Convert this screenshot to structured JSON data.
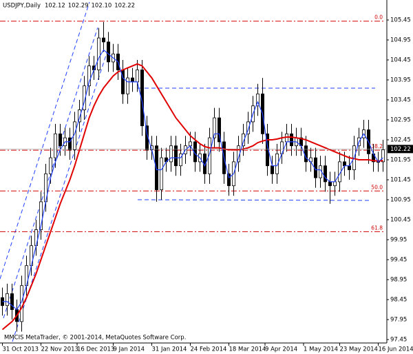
{
  "chart_data": {
    "type": "candlestick",
    "title": "USDJPY,Daily",
    "quote": [
      102.12,
      102.29,
      {
        "value": 102.1,
        "label": "102.10"
      },
      102.22
    ],
    "footer": "MMCIS MetaTrader, © 2001-2014, MetaQuotes Software Corp.",
    "xlim": [
      -0.5,
      79.5
    ],
    "xticks": [
      {
        "value": 0,
        "label": "31 Oct 2013"
      },
      {
        "value": 8,
        "label": "22 Nov 2013"
      },
      {
        "value": 15.5,
        "label": "16 Dec 2013"
      },
      {
        "value": 23,
        "label": "9 Jan 2014"
      },
      {
        "value": 31,
        "label": "31 Jan 2014"
      },
      {
        "value": 39,
        "label": "24 Feb 2014"
      },
      {
        "value": 47,
        "label": "18 Mar 2014"
      },
      {
        "value": 54.5,
        "label": "9 Apr 2014"
      },
      {
        "value": 62.5,
        "label": "1 May 2014"
      },
      {
        "value": 70,
        "label": "23 May 2014"
      },
      {
        "value": 78,
        "label": "16 Jun 2014"
      }
    ],
    "ylim": [
      97.33,
      105.95
    ],
    "yticks": [
      105.45,
      104.95,
      104.45,
      103.95,
      103.45,
      102.95,
      102.45,
      101.95,
      101.45,
      100.95,
      100.45,
      99.95,
      99.45,
      98.95,
      98.45,
      97.95,
      97.45
    ],
    "candles": {
      "open": [
        98.5,
        98.3,
        98.6,
        98.2,
        97.9,
        98.8,
        99.3,
        99.8,
        100.2,
        100.9,
        101.6,
        102.0,
        102.6,
        102.3,
        102.5,
        102.2,
        102.9,
        103.2,
        103.8,
        104.3,
        104.2,
        105.0,
        104.9,
        104.4,
        104.6,
        104.2,
        103.6,
        104.0,
        103.9,
        104.2,
        102.8,
        102.2,
        102.3,
        101.2,
        102.0,
        101.9,
        102.3,
        101.8,
        102.1,
        102.3,
        102.4,
        101.9,
        102.1,
        101.6,
        102.5,
        103.0,
        102.4,
        101.6,
        101.3,
        101.9,
        102.3,
        102.6,
        102.9,
        103.3,
        103.6,
        102.6,
        101.8,
        101.6,
        102.1,
        102.4,
        102.6,
        102.3,
        102.5,
        102.3,
        101.9,
        102.0,
        101.5,
        101.8,
        101.4,
        101.3,
        101.4,
        101.9,
        101.8,
        101.7,
        102.3,
        102.5,
        102.7,
        102.1,
        101.9,
        101.9
      ],
      "high": [
        98.75,
        98.85,
        98.85,
        98.45,
        99.05,
        99.55,
        100.05,
        100.45,
        101.15,
        101.85,
        102.25,
        102.85,
        102.85,
        102.75,
        102.75,
        103.15,
        103.45,
        104.05,
        104.55,
        104.55,
        105.25,
        105.4,
        105.15,
        104.85,
        104.85,
        104.45,
        104.25,
        104.25,
        104.45,
        104.45,
        103.05,
        102.55,
        102.55,
        102.25,
        102.25,
        102.55,
        102.55,
        102.35,
        102.55,
        102.65,
        102.65,
        102.35,
        102.35,
        102.75,
        103.25,
        103.25,
        102.65,
        101.85,
        102.15,
        102.55,
        102.85,
        103.15,
        103.55,
        103.85,
        104.0,
        102.85,
        102.05,
        102.35,
        102.65,
        102.85,
        102.85,
        102.75,
        102.75,
        102.55,
        102.25,
        102.25,
        102.05,
        102.05,
        101.65,
        101.65,
        102.15,
        102.15,
        102.05,
        102.55,
        102.75,
        102.95,
        102.95,
        102.35,
        102.15,
        102.45
      ],
      "low": [
        98.05,
        98.05,
        97.95,
        97.65,
        97.65,
        98.55,
        99.05,
        99.55,
        99.95,
        100.65,
        101.35,
        101.75,
        102.05,
        102.05,
        101.95,
        101.95,
        102.65,
        102.95,
        103.55,
        103.95,
        103.95,
        104.65,
        104.15,
        104.15,
        103.95,
        103.35,
        103.35,
        103.65,
        103.65,
        102.55,
        101.95,
        101.95,
        100.9,
        100.95,
        101.65,
        101.65,
        101.55,
        101.55,
        101.85,
        102.05,
        101.65,
        101.65,
        101.35,
        101.35,
        102.25,
        102.15,
        101.35,
        101.05,
        101.05,
        101.65,
        102.05,
        102.35,
        102.65,
        103.05,
        102.35,
        101.55,
        101.35,
        101.35,
        101.85,
        102.15,
        102.05,
        102.05,
        102.05,
        101.65,
        101.65,
        101.25,
        101.25,
        101.15,
        100.85,
        101.05,
        101.15,
        101.55,
        101.45,
        101.45,
        102.05,
        102.25,
        101.85,
        101.65,
        101.65,
        101.65
      ],
      "close": [
        98.3,
        98.6,
        98.2,
        97.9,
        98.8,
        99.3,
        99.8,
        100.2,
        100.9,
        101.6,
        102.0,
        102.6,
        102.3,
        102.5,
        102.2,
        102.9,
        103.2,
        103.8,
        104.3,
        104.2,
        105.0,
        104.9,
        104.4,
        104.6,
        104.2,
        103.6,
        104.0,
        103.9,
        104.2,
        102.8,
        102.2,
        102.3,
        101.2,
        102.0,
        101.9,
        102.3,
        101.8,
        102.1,
        102.3,
        102.4,
        101.9,
        102.1,
        101.6,
        102.5,
        103.0,
        102.4,
        101.6,
        101.3,
        101.9,
        102.3,
        102.6,
        102.9,
        103.3,
        103.6,
        102.6,
        101.8,
        101.6,
        102.1,
        102.4,
        102.6,
        102.3,
        102.5,
        102.3,
        101.9,
        102.0,
        101.5,
        101.8,
        101.4,
        101.3,
        101.4,
        101.9,
        101.8,
        101.7,
        102.3,
        102.5,
        102.7,
        102.1,
        101.9,
        101.9,
        102.2
      ]
    },
    "lines": [
      {
        "color": "#e00000",
        "values": [
          97.7,
          97.8,
          97.9,
          98.05,
          98.25,
          98.5,
          98.8,
          99.1,
          99.45,
          99.8,
          100.15,
          100.5,
          100.85,
          101.15,
          101.45,
          101.8,
          102.2,
          102.6,
          103.0,
          103.3,
          103.55,
          103.75,
          103.9,
          104.05,
          104.15,
          104.2,
          104.25,
          104.3,
          104.35,
          104.3,
          104.15,
          104.0,
          103.8,
          103.6,
          103.4,
          103.2,
          103.0,
          102.85,
          102.7,
          102.55,
          102.45,
          102.35,
          102.28,
          102.25,
          102.25,
          102.25,
          102.22,
          102.2,
          102.2,
          102.2,
          102.22,
          102.25,
          102.3,
          102.38,
          102.42,
          102.45,
          102.45,
          102.47,
          102.5,
          102.52,
          102.52,
          102.5,
          102.48,
          102.45,
          102.4,
          102.35,
          102.3,
          102.25,
          102.2,
          102.15,
          102.1,
          102.05,
          102.0,
          101.98,
          101.95,
          101.95,
          101.95,
          101.93,
          101.92,
          101.93
        ]
      },
      {
        "color": "#1f3fff",
        "values": [
          98.4,
          98.4,
          98.3,
          98.2,
          98.4,
          98.8,
          99.3,
          99.8,
          100.3,
          100.9,
          101.5,
          101.9,
          102.2,
          102.4,
          102.4,
          102.6,
          103.0,
          103.4,
          103.9,
          104.2,
          104.5,
          104.7,
          104.6,
          104.5,
          104.4,
          104.0,
          103.9,
          103.9,
          103.9,
          103.4,
          102.6,
          102.2,
          101.7,
          101.7,
          101.9,
          102.0,
          102.0,
          102.0,
          102.2,
          102.3,
          102.1,
          102.0,
          101.8,
          102.1,
          102.6,
          102.6,
          102.0,
          101.5,
          101.6,
          102.0,
          102.4,
          102.7,
          103.1,
          103.4,
          103.1,
          102.3,
          101.8,
          101.8,
          102.1,
          102.4,
          102.4,
          102.4,
          102.3,
          102.0,
          101.9,
          101.7,
          101.7,
          101.5,
          101.4,
          101.4,
          101.6,
          101.8,
          101.8,
          102.0,
          102.4,
          102.6,
          102.4,
          102.1,
          101.9,
          102.0
        ]
      }
    ],
    "fib_levels": [
      {
        "level": {
          "value": 0,
          "label": "0.0"
        },
        "price": 105.42
      },
      {
        "level": 38.2,
        "price": 102.19
      },
      {
        "level": {
          "value": 50,
          "label": "50.0"
        },
        "price": 101.17
      },
      {
        "level": 61.8,
        "price": 100.15
      }
    ],
    "fib_color": "#d00000",
    "last_price": 102.22
  }
}
